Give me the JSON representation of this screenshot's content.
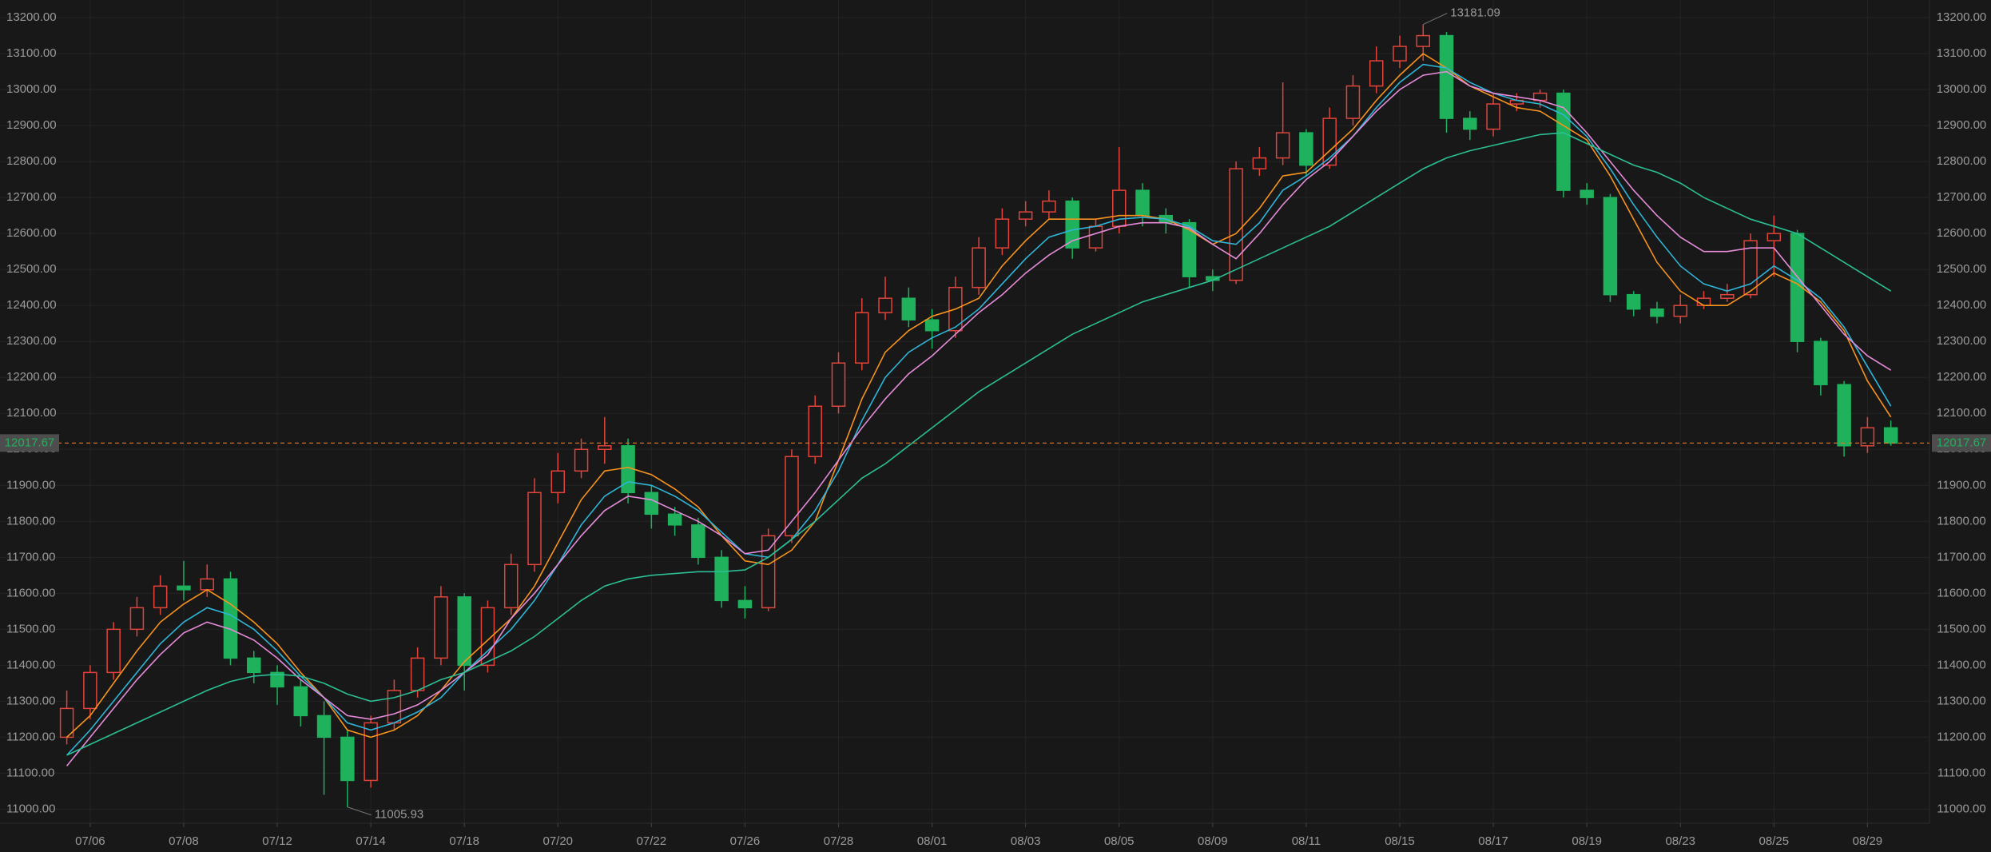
{
  "chart_data": {
    "type": "candlestick",
    "categories": [
      null,
      "07/06",
      null,
      null,
      null,
      "07/08",
      null,
      null,
      null,
      "07/12",
      null,
      null,
      null,
      "07/14",
      null,
      null,
      null,
      "07/18",
      null,
      null,
      null,
      "07/20",
      null,
      null,
      null,
      "07/22",
      null,
      null,
      null,
      "07/26",
      null,
      null,
      null,
      "07/28",
      null,
      null,
      null,
      "08/01",
      null,
      null,
      null,
      "08/03",
      null,
      null,
      null,
      "08/05",
      null,
      null,
      null,
      "08/09",
      null,
      null,
      null,
      "08/11",
      null,
      null,
      null,
      "08/15",
      null,
      null,
      null,
      "08/17",
      null,
      null,
      null,
      "08/19",
      null,
      null,
      null,
      "08/23",
      null,
      null,
      null,
      "08/25",
      null,
      null,
      null,
      "08/29",
      null
    ],
    "open": [
      11200,
      11280,
      11380,
      11500,
      11560,
      11620,
      11610,
      11640,
      11420,
      11380,
      11340,
      11260,
      11200,
      11080,
      11240,
      11330,
      11420,
      11590,
      11400,
      11560,
      11680,
      11880,
      11940,
      12000,
      12010,
      11880,
      11820,
      11790,
      11700,
      11580,
      11560,
      11760,
      11980,
      12120,
      12240,
      12380,
      12420,
      12360,
      12330,
      12450,
      12560,
      12640,
      12660,
      12690,
      12560,
      12620,
      12720,
      12650,
      12630,
      12480,
      12470,
      12780,
      12810,
      12880,
      12790,
      12920,
      13010,
      13080,
      13120,
      13150,
      12920,
      12890,
      12960,
      12970,
      12990,
      12720,
      12700,
      12430,
      12390,
      12370,
      12400,
      12420,
      12430,
      12580,
      12600,
      12300,
      12180,
      12010,
      12060
    ],
    "high": [
      11330,
      11400,
      11520,
      11590,
      11650,
      11690,
      11680,
      11660,
      11440,
      11400,
      11360,
      11300,
      11220,
      11260,
      11360,
      11450,
      11620,
      11600,
      11580,
      11710,
      11920,
      11990,
      12030,
      12090,
      12030,
      11900,
      11840,
      11810,
      11720,
      11620,
      11780,
      12000,
      12150,
      12270,
      12420,
      12480,
      12450,
      12390,
      12480,
      12590,
      12670,
      12690,
      12720,
      12700,
      12640,
      12840,
      12740,
      12670,
      12640,
      12500,
      12800,
      12840,
      13020,
      12890,
      12950,
      13040,
      13120,
      13150,
      13181.09,
      13160,
      12940,
      12990,
      12990,
      13000,
      13000,
      12740,
      12710,
      12440,
      12410,
      12430,
      12440,
      12460,
      12600,
      12650,
      12610,
      12310,
      12190,
      12090,
      12080
    ],
    "low": [
      11180,
      11250,
      11360,
      11480,
      11540,
      11580,
      11590,
      11400,
      11350,
      11290,
      11230,
      11040,
      11005.93,
      11060,
      11220,
      11310,
      11400,
      11330,
      11380,
      11540,
      11660,
      11850,
      11920,
      11960,
      11850,
      11780,
      11760,
      11680,
      11560,
      11530,
      11550,
      11740,
      11960,
      12100,
      12220,
      12360,
      12340,
      12280,
      12310,
      12430,
      12540,
      12620,
      12640,
      12530,
      12550,
      12600,
      12620,
      12600,
      12450,
      12440,
      12460,
      12760,
      12790,
      12760,
      12780,
      12900,
      12990,
      13060,
      13080,
      12880,
      12860,
      12870,
      12940,
      12950,
      12700,
      12680,
      12410,
      12370,
      12350,
      12350,
      12390,
      12410,
      12420,
      12480,
      12270,
      12150,
      11980,
      11990,
      12010
    ],
    "close": [
      11280,
      11380,
      11500,
      11560,
      11620,
      11610,
      11640,
      11420,
      11380,
      11340,
      11260,
      11200,
      11080,
      11240,
      11330,
      11420,
      11590,
      11400,
      11560,
      11680,
      11880,
      11940,
      12000,
      12010,
      11880,
      11820,
      11790,
      11700,
      11580,
      11560,
      11760,
      11980,
      12120,
      12240,
      12380,
      12420,
      12360,
      12330,
      12450,
      12560,
      12640,
      12660,
      12690,
      12560,
      12620,
      12720,
      12650,
      12630,
      12480,
      12470,
      12780,
      12810,
      12880,
      12790,
      12920,
      13010,
      13080,
      13120,
      13150,
      12920,
      12890,
      12960,
      12970,
      12990,
      12720,
      12700,
      12430,
      12390,
      12370,
      12400,
      12420,
      12430,
      12580,
      12600,
      12300,
      12180,
      12010,
      12060,
      12017.67
    ],
    "up_color": "#e0443a",
    "down_color": "#1fb15c",
    "series": [
      {
        "color": "#f7931e",
        "values": [
          11200,
          11260,
          11350,
          11440,
          11520,
          11570,
          11610,
          11570,
          11520,
          11460,
          11380,
          11310,
          11220,
          11200,
          11220,
          11260,
          11330,
          11410,
          11470,
          11530,
          11620,
          11740,
          11860,
          11940,
          11950,
          11930,
          11890,
          11840,
          11760,
          11690,
          11680,
          11720,
          11800,
          11970,
          12140,
          12270,
          12330,
          12370,
          12390,
          12420,
          12510,
          12580,
          12640,
          12640,
          12640,
          12650,
          12650,
          12640,
          12610,
          12570,
          12600,
          12670,
          12760,
          12770,
          12830,
          12890,
          12970,
          13040,
          13100,
          13060,
          13010,
          12980,
          12950,
          12940,
          12900,
          12860,
          12760,
          12640,
          12520,
          12440,
          12400,
          12400,
          12440,
          12490,
          12460,
          12410,
          12330,
          12190,
          12090
        ]
      },
      {
        "color": "#2fb5d8",
        "values": [
          11150,
          11220,
          11300,
          11380,
          11460,
          11520,
          11560,
          11540,
          11500,
          11440,
          11370,
          11310,
          11240,
          11220,
          11240,
          11270,
          11310,
          11380,
          11440,
          11500,
          11580,
          11680,
          11790,
          11870,
          11910,
          11900,
          11870,
          11830,
          11770,
          11710,
          11700,
          11750,
          11830,
          11940,
          12080,
          12200,
          12270,
          12310,
          12340,
          12390,
          12460,
          12530,
          12590,
          12610,
          12620,
          12640,
          12645,
          12640,
          12620,
          12580,
          12570,
          12630,
          12720,
          12760,
          12810,
          12870,
          12950,
          13020,
          13070,
          13060,
          13020,
          12990,
          12970,
          12960,
          12930,
          12870,
          12780,
          12680,
          12590,
          12510,
          12460,
          12440,
          12460,
          12510,
          12470,
          12420,
          12340,
          12230,
          12120
        ]
      },
      {
        "color": "#e58bd9",
        "values": [
          11120,
          11200,
          11280,
          11360,
          11430,
          11490,
          11520,
          11500,
          11470,
          11420,
          11360,
          11310,
          11260,
          11250,
          11265,
          11290,
          11330,
          11380,
          11430,
          11530,
          11600,
          11680,
          11760,
          11830,
          11870,
          11860,
          11830,
          11800,
          11760,
          11710,
          11720,
          11800,
          11880,
          11970,
          12060,
          12140,
          12210,
          12260,
          12320,
          12380,
          12430,
          12490,
          12540,
          12580,
          12600,
          12620,
          12630,
          12630,
          12615,
          12570,
          12530,
          12600,
          12680,
          12750,
          12800,
          12870,
          12940,
          13000,
          13040,
          13050,
          13010,
          12990,
          12980,
          12970,
          12950,
          12880,
          12800,
          12720,
          12650,
          12590,
          12550,
          12550,
          12560,
          12560,
          12480,
          12400,
          12320,
          12260,
          12220
        ]
      },
      {
        "color": "#2bbf93",
        "values": [
          11150,
          11180,
          11210,
          11240,
          11270,
          11300,
          11330,
          11355,
          11370,
          11375,
          11370,
          11350,
          11320,
          11300,
          11310,
          11330,
          11360,
          11380,
          11410,
          11440,
          11480,
          11530,
          11580,
          11620,
          11640,
          11650,
          11655,
          11660,
          11660,
          11665,
          11700,
          11750,
          11800,
          11860,
          11920,
          11960,
          12010,
          12060,
          12110,
          12160,
          12200,
          12240,
          12280,
          12320,
          12350,
          12380,
          12410,
          12430,
          12450,
          12470,
          12500,
          12530,
          12560,
          12590,
          12620,
          12660,
          12700,
          12740,
          12780,
          12810,
          12830,
          12845,
          12860,
          12875,
          12880,
          12850,
          12820,
          12790,
          12770,
          12740,
          12700,
          12670,
          12640,
          12620,
          12600,
          12560,
          12520,
          12480,
          12440
        ]
      }
    ],
    "price_line_color": "#e2772e",
    "ylim": [
      10961,
      13249
    ],
    "yticks": [
      {
        "value": 11000,
        "label": "11000.00"
      },
      {
        "value": 11100,
        "label": "11100.00"
      },
      {
        "value": 11200,
        "label": "11200.00"
      },
      {
        "value": 11300,
        "label": "11300.00"
      },
      {
        "value": 11400,
        "label": "11400.00"
      },
      {
        "value": 11500,
        "label": "11500.00"
      },
      {
        "value": 11600,
        "label": "11600.00"
      },
      {
        "value": 11700,
        "label": "11700.00"
      },
      {
        "value": 11800,
        "label": "11800.00"
      },
      {
        "value": 11900,
        "label": "11900.00"
      },
      {
        "value": 12000,
        "label": "12000.00"
      },
      {
        "value": 12100,
        "label": "12100.00"
      },
      {
        "value": 12200,
        "label": "12200.00"
      },
      {
        "value": 12300,
        "label": "12300.00"
      },
      {
        "value": 12400,
        "label": "12400.00"
      },
      {
        "value": 12500,
        "label": "12500.00"
      },
      {
        "value": 12600,
        "label": "12600.00"
      },
      {
        "value": 12700,
        "label": "12700.00"
      },
      {
        "value": 12800,
        "label": "12800.00"
      },
      {
        "value": 12900,
        "label": "12900.00"
      },
      {
        "value": 13000,
        "label": "13000.00"
      },
      {
        "value": 13100,
        "label": "13100.00"
      },
      {
        "value": 13200,
        "label": "13200.00"
      }
    ],
    "grid": true
  }
}
